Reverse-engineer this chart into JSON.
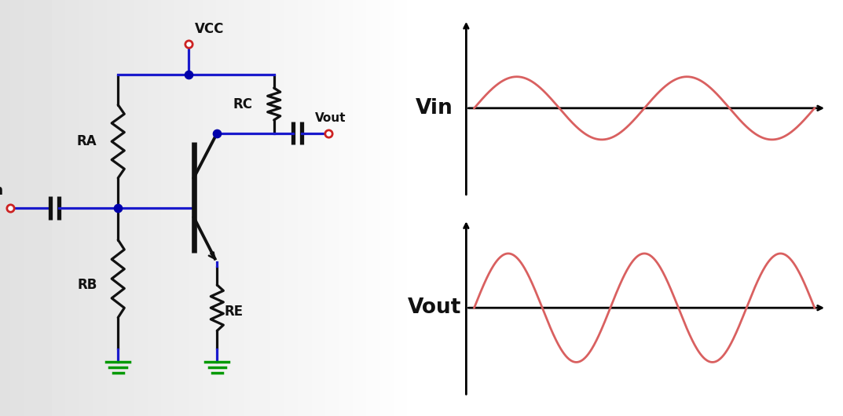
{
  "blue": "#1a1acc",
  "red": "#cc2222",
  "green": "#009900",
  "black": "#111111",
  "salmon": "#d96060",
  "vin_label": "Vin",
  "vcc_label": "VCC",
  "vout_label": "Vout",
  "ra_label": "RA",
  "rb_label": "RB",
  "rc_label": "RC",
  "re_label": "RE",
  "vin_wave_label": "Vin",
  "vout_wave_label": "Vout",
  "vin_amplitude": 0.55,
  "vout_amplitude": 0.95,
  "vin_freq": 1.0,
  "vout_freq": 1.5
}
